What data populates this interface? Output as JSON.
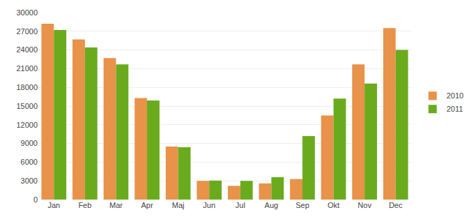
{
  "chart_data": {
    "type": "bar",
    "categories": [
      "Jan",
      "Feb",
      "Mar",
      "Apr",
      "Maj",
      "Jun",
      "Jul",
      "Aug",
      "Sep",
      "Okt",
      "Nov",
      "Dec"
    ],
    "series": [
      {
        "name": "2010",
        "color": "#E8924A",
        "values": [
          28200,
          25700,
          22700,
          16300,
          8500,
          3000,
          2200,
          2600,
          3300,
          13500,
          21700,
          27500
        ]
      },
      {
        "name": "2011",
        "color": "#6AAB1E",
        "values": [
          27200,
          24400,
          21700,
          15900,
          8400,
          3050,
          3000,
          3600,
          10200,
          16200,
          18600,
          24000
        ]
      }
    ],
    "ylim": [
      0,
      30000
    ],
    "yticks": [
      0,
      3000,
      6000,
      9000,
      12000,
      15000,
      18000,
      21000,
      24000,
      27000,
      30000
    ],
    "grid": true,
    "legend": "right"
  }
}
